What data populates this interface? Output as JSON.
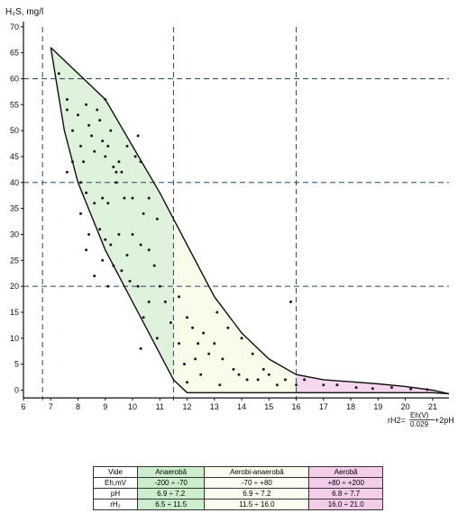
{
  "chart_data": {
    "type": "scatter",
    "ylabel": "H₂S, mg/l",
    "xlabel": "rH2=Eh(V)/0.029+2pH",
    "xlabel_lhs": "rH2=",
    "xlabel_num": "Eh(V)",
    "xlabel_den": "0.029",
    "xlabel_rhs": "+2pH",
    "xlim": [
      6,
      21.6
    ],
    "ylim": [
      -2,
      71
    ],
    "xticks": [
      6,
      7,
      8,
      9,
      10,
      11,
      12,
      13,
      14,
      15,
      16,
      17,
      18,
      19,
      20,
      21
    ],
    "yticks": [
      0,
      5,
      10,
      15,
      20,
      25,
      30,
      35,
      40,
      45,
      50,
      55,
      60,
      65,
      70
    ],
    "vlines": [
      6.7,
      11.5,
      16
    ],
    "hlines": [
      20,
      40,
      60
    ],
    "envelope_upper": [
      [
        7,
        66
      ],
      [
        9,
        56
      ],
      [
        10,
        47
      ],
      [
        11,
        38
      ],
      [
        12,
        28
      ],
      [
        13,
        18
      ],
      [
        14,
        11
      ],
      [
        15,
        6
      ],
      [
        16,
        3
      ],
      [
        17,
        2
      ],
      [
        18,
        1.6
      ],
      [
        19,
        1.2
      ],
      [
        20,
        0.7
      ],
      [
        21,
        0
      ],
      [
        21.6,
        -0.7
      ]
    ],
    "envelope_lower": [
      [
        7,
        66
      ],
      [
        7.5,
        50
      ],
      [
        8,
        40
      ],
      [
        9,
        27
      ],
      [
        10,
        17
      ],
      [
        10.5,
        12
      ],
      [
        11,
        7
      ],
      [
        11.5,
        2
      ],
      [
        12,
        -0.5
      ],
      [
        14,
        -0.5
      ],
      [
        16,
        -0.5
      ],
      [
        21,
        -0.5
      ],
      [
        21.6,
        -0.7
      ]
    ],
    "zones": [
      {
        "name": "Anaerobă",
        "x_range": [
          7,
          11.5
        ],
        "color": "#dff3dc"
      },
      {
        "name": "Aerobi-anaerobă",
        "x_range": [
          11.5,
          16
        ],
        "color": "#fbfbec"
      },
      {
        "name": "Aerobă",
        "x_range": [
          16,
          21.6
        ],
        "color": "#f6d8ee"
      }
    ],
    "points": [
      [
        7.3,
        61
      ],
      [
        7.6,
        56
      ],
      [
        7.6,
        54
      ],
      [
        7.8,
        50
      ],
      [
        8,
        53
      ],
      [
        8.1,
        47
      ],
      [
        8.2,
        44
      ],
      [
        8.3,
        55
      ],
      [
        8.4,
        51
      ],
      [
        8.5,
        49
      ],
      [
        8.6,
        46
      ],
      [
        8.7,
        54
      ],
      [
        8.8,
        52
      ],
      [
        8.9,
        48
      ],
      [
        9,
        56
      ],
      [
        9,
        45
      ],
      [
        9.1,
        47
      ],
      [
        9.2,
        50
      ],
      [
        9.3,
        43
      ],
      [
        9.4,
        42
      ],
      [
        9.5,
        44
      ],
      [
        9.6,
        42
      ],
      [
        9.8,
        47
      ],
      [
        10.1,
        45
      ],
      [
        10.3,
        44
      ],
      [
        10.2,
        49
      ],
      [
        7.8,
        44
      ],
      [
        7.6,
        42
      ],
      [
        8.1,
        40
      ],
      [
        8.3,
        38
      ],
      [
        8.6,
        36
      ],
      [
        8.9,
        37
      ],
      [
        9.1,
        36
      ],
      [
        9.4,
        40
      ],
      [
        9.7,
        37
      ],
      [
        10,
        37
      ],
      [
        10.4,
        34
      ],
      [
        10.6,
        37
      ],
      [
        10.9,
        33
      ],
      [
        8.1,
        34
      ],
      [
        8.4,
        30
      ],
      [
        8.8,
        31
      ],
      [
        9,
        29
      ],
      [
        9.2,
        28
      ],
      [
        9.5,
        30
      ],
      [
        9.8,
        26
      ],
      [
        10,
        30
      ],
      [
        10.3,
        28
      ],
      [
        10.6,
        27
      ],
      [
        10.8,
        24
      ],
      [
        11,
        20
      ],
      [
        8.3,
        27
      ],
      [
        8.9,
        25
      ],
      [
        9.3,
        24
      ],
      [
        9.6,
        23
      ],
      [
        9.9,
        21
      ],
      [
        10.2,
        20
      ],
      [
        8.6,
        22
      ],
      [
        9.1,
        20
      ],
      [
        10.6,
        17
      ],
      [
        10.4,
        14
      ],
      [
        10.9,
        10
      ],
      [
        10.3,
        8
      ],
      [
        11.2,
        17
      ],
      [
        11.4,
        13
      ],
      [
        11.7,
        9
      ],
      [
        11.9,
        5
      ],
      [
        11.7,
        18
      ],
      [
        12,
        14
      ],
      [
        12.2,
        12
      ],
      [
        12.4,
        9
      ],
      [
        12.3,
        6
      ],
      [
        12.5,
        3
      ],
      [
        12.6,
        11
      ],
      [
        12.8,
        7
      ],
      [
        13,
        9
      ],
      [
        13.1,
        15
      ],
      [
        13.3,
        6
      ],
      [
        13.5,
        12
      ],
      [
        13.7,
        4
      ],
      [
        13.9,
        3
      ],
      [
        14,
        10
      ],
      [
        14.2,
        2
      ],
      [
        14.4,
        7
      ],
      [
        14.6,
        2
      ],
      [
        14.8,
        4
      ],
      [
        15,
        3
      ],
      [
        15.3,
        1
      ],
      [
        15.6,
        2
      ],
      [
        15.8,
        17
      ],
      [
        16,
        1
      ],
      [
        16.3,
        2
      ],
      [
        17,
        1
      ],
      [
        17.5,
        1
      ],
      [
        18.2,
        0.5
      ],
      [
        18.8,
        0.3
      ],
      [
        19.5,
        0.5
      ],
      [
        20.2,
        0.2
      ],
      [
        20.8,
        0.1
      ],
      [
        12,
        1.5
      ],
      [
        13.2,
        1
      ]
    ]
  },
  "table": {
    "header": [
      "Vide",
      "Anaerobă",
      "Aerobi-anaerobă",
      "Aerobă"
    ],
    "rows": [
      {
        "label": "Eh,mV",
        "values": [
          "-200 ÷ -70",
          "-70 ÷ +80",
          "+80 ÷ +200"
        ]
      },
      {
        "label": "pH",
        "values": [
          "6.9 ÷ 7.2",
          "6.9 ÷ 7.2",
          "6.8 ÷ 7.7"
        ]
      },
      {
        "label": "rH₂",
        "values": [
          "6.5 ÷ 11.5",
          "11.5 ÷ 16.0",
          "16.0 ÷ 21.0"
        ]
      }
    ]
  }
}
